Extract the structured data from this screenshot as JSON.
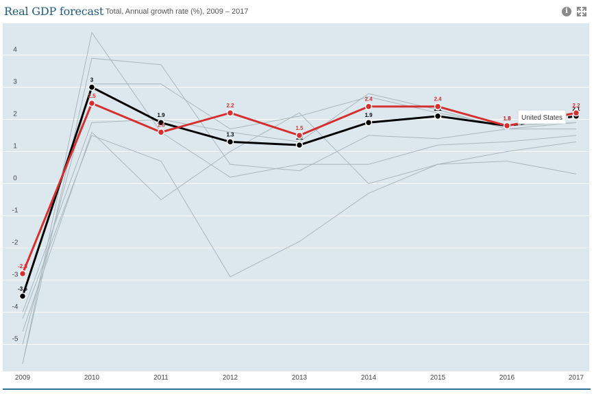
{
  "header": {
    "title": "Real GDP forecast",
    "subtitle": "Total, Annual growth rate (%), 2009 – 2017"
  },
  "icons": {
    "info": "info-icon",
    "expand": "expand-icon"
  },
  "colors": {
    "background": "#dde8ee",
    "highlight": "#d62f2f",
    "united_states": "#000000",
    "others": "#a8b6bd"
  },
  "tooltip": {
    "label": "United States"
  },
  "chart_data": {
    "type": "line",
    "title": "Real GDP forecast",
    "subtitle": "Total, Annual growth rate (%), 2009 – 2017",
    "x": [
      2009,
      2010,
      2011,
      2012,
      2013,
      2014,
      2015,
      2016,
      2017
    ],
    "ylim": [
      -5.7,
      5.2
    ],
    "yticks": [
      -5,
      -4,
      -3,
      -2,
      -1,
      0,
      1,
      2,
      3,
      4
    ],
    "grid": true,
    "series": [
      {
        "name": "United States",
        "role": "black",
        "values": [
          -3.5,
          3.0,
          1.9,
          1.3,
          1.2,
          1.9,
          2.1,
          1.8,
          2.1
        ],
        "labels": [
          "-3.5",
          "3",
          "1.9",
          "1.3",
          "1.2",
          "1.9",
          "2.1",
          "1.8",
          "2.1"
        ],
        "dashed_last_segment": true
      },
      {
        "role": "red",
        "values": [
          -2.8,
          2.5,
          1.6,
          2.2,
          1.5,
          2.4,
          2.4,
          1.8,
          2.2
        ],
        "labels": [
          "-2.8",
          "2.5",
          "1.6",
          "2.2",
          "1.5",
          "2.4",
          "2.4",
          "1.8",
          "2.2"
        ]
      },
      {
        "role": "grey",
        "values": [
          -5.6,
          4.7,
          1.6,
          0.2,
          0.6,
          0.6,
          1.2,
          1.3,
          1.5
        ]
      },
      {
        "role": "grey",
        "values": [
          -5.6,
          3.9,
          3.7,
          0.6,
          0.4,
          1.5,
          1.4,
          1.7,
          1.7
        ]
      },
      {
        "role": "grey",
        "values": [
          -4.2,
          1.5,
          0.7,
          -2.9,
          -1.8,
          -0.3,
          0.6,
          0.7,
          0.3
        ]
      },
      {
        "role": "grey",
        "values": [
          -5.0,
          3.1,
          3.1,
          1.7,
          2.1,
          2.7,
          2.2,
          1.8,
          1.9
        ]
      },
      {
        "role": "grey",
        "values": [
          -4.0,
          1.9,
          2.0,
          1.6,
          1.3,
          2.8,
          2.3,
          1.7,
          1.9
        ]
      },
      {
        "role": "grey",
        "values": [
          -4.6,
          1.6,
          -0.5,
          1.0,
          2.2,
          0.0,
          0.6,
          1.0,
          1.3
        ]
      }
    ]
  }
}
